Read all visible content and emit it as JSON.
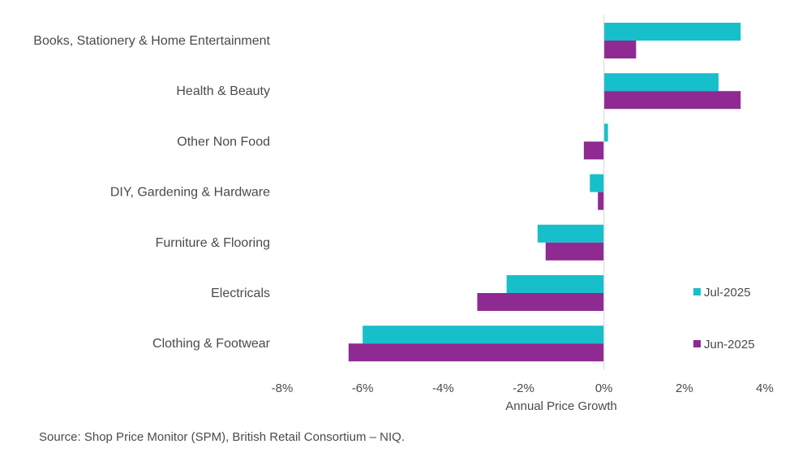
{
  "chart_data": {
    "type": "bar",
    "orientation": "horizontal",
    "title": "",
    "xlabel": "Annual Price Growth",
    "ylabel": "",
    "xlim": [
      -8,
      4
    ],
    "x_ticks": [
      -8,
      -6,
      -4,
      -2,
      0,
      2,
      4
    ],
    "x_tick_labels": [
      "-8%",
      "-6%",
      "-4%",
      "-2%",
      "0%",
      "2%",
      "4%"
    ],
    "categories": [
      "Books, Stationery & Home Entertainment",
      "Health & Beauty",
      "Other Non Food",
      "DIY, Gardening & Hardware",
      "Furniture & Flooring",
      "Electricals",
      "Clothing & Footwear"
    ],
    "series": [
      {
        "name": "Jul-2025",
        "color": "#17bfcb",
        "values": [
          3.4,
          2.85,
          0.1,
          -0.35,
          -1.65,
          -2.42,
          -6.0
        ]
      },
      {
        "name": "Jun-2025",
        "color": "#8e2a91",
        "values": [
          0.8,
          3.4,
          -0.5,
          -0.15,
          -1.45,
          -3.15,
          -6.35
        ]
      }
    ],
    "legend_position": "right",
    "grid": false
  },
  "source": "Source: Shop Price Monitor (SPM), British Retail Consortium – NIQ."
}
